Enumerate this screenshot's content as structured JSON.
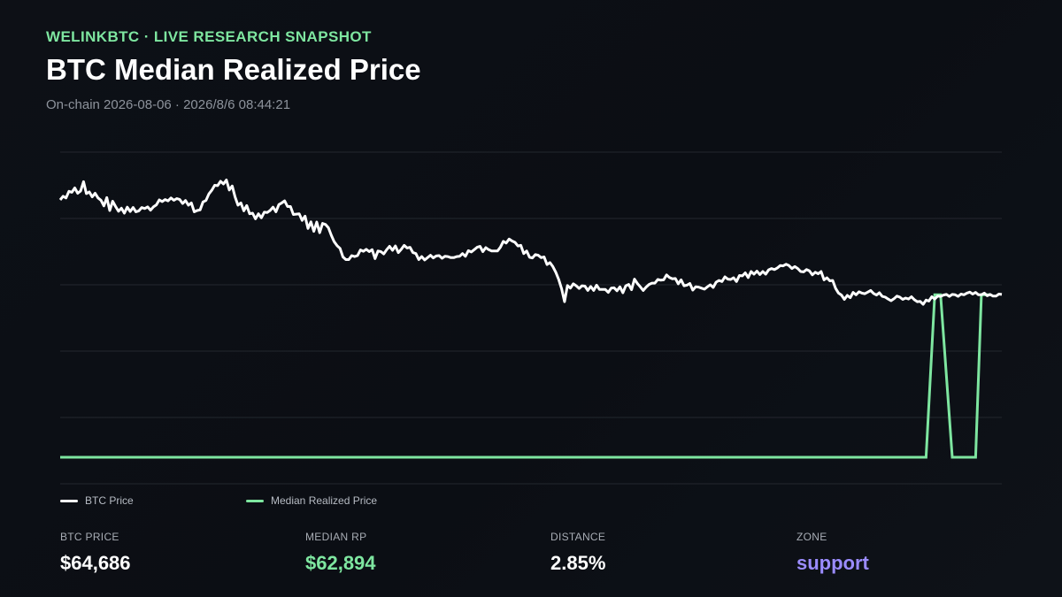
{
  "header": {
    "brand": "WELINKBTC · LIVE RESEARCH SNAPSHOT",
    "title": "BTC Median Realized Price",
    "subtitle": "On-chain 2026-08-06 · 2026/8/6 08:44:21"
  },
  "legend": {
    "btc_price": "BTC Price",
    "median_rp": "Median Realized Price"
  },
  "stats": [
    {
      "label": "BTC PRICE",
      "value": "$64,686",
      "color": "#ffffff"
    },
    {
      "label": "MEDIAN RP",
      "value": "$62,894",
      "color": "#7ee6a0"
    },
    {
      "label": "DISTANCE",
      "value": "2.85%",
      "color": "#ffffff"
    },
    {
      "label": "ZONE",
      "value": "support",
      "color": "#9b8cff"
    }
  ],
  "colors": {
    "btc_price": "#ffffff",
    "median_rp": "#7ee6a0",
    "grid": "#23272e",
    "zone": "#9b8cff"
  },
  "chart_data": {
    "type": "line",
    "grid": true,
    "x_axis_labels": false,
    "y_axis_labels": false,
    "legend_position": "bottom-left",
    "ylim": [
      0,
      100
    ],
    "series": [
      {
        "name": "BTC Price",
        "color": "#ffffff",
        "values": [
          85.6,
          86.7,
          86.2,
          88.2,
          87.9,
          89.2,
          87.6,
          88.3,
          91.1,
          87.5,
          88.0,
          86.5,
          87.6,
          86.2,
          85.5,
          83.8,
          86.3,
          82.4,
          85.2,
          83.6,
          82.2,
          83.1,
          81.6,
          83.4,
          82.1,
          83.3,
          82.0,
          82.3,
          83.3,
          83.0,
          83.5,
          82.5,
          83.5,
          84.1,
          85.6,
          85.1,
          85.7,
          85.3,
          86.2,
          85.5,
          86.0,
          85.7,
          84.5,
          85.4,
          84.0,
          84.7,
          82.0,
          82.4,
          82.6,
          85.0,
          85.4,
          87.4,
          88.5,
          90.0,
          89.9,
          91.2,
          90.4,
          91.6,
          88.6,
          89.8,
          86.5,
          84.0,
          84.7,
          82.3,
          83.9,
          81.4,
          81.6,
          79.9,
          81.4,
          80.2,
          81.9,
          81.8,
          82.4,
          83.4,
          82.0,
          84.2,
          84.7,
          85.3,
          83.6,
          83.6,
          81.2,
          81.3,
          81.4,
          79.4,
          80.7,
          77.0,
          79.0,
          76.1,
          78.9,
          75.7,
          78.5,
          78.2,
          77.2,
          74.9,
          73.0,
          71.8,
          71.0,
          68.4,
          67.6,
          67.6,
          68.8,
          68.5,
          68.8,
          70.5,
          70.1,
          70.7,
          70.0,
          70.6,
          67.9,
          70.2,
          70.0,
          69.3,
          70.6,
          71.6,
          70.4,
          71.7,
          69.7,
          70.7,
          71.9,
          71.1,
          71.3,
          69.7,
          69.4,
          67.6,
          68.5,
          67.5,
          68.2,
          68.9,
          68.1,
          68.7,
          68.8,
          68.0,
          68.6,
          68.5,
          68.2,
          68.2,
          68.5,
          68.6,
          69.4,
          68.6,
          70.3,
          69.9,
          70.6,
          71.3,
          71.6,
          70.0,
          71.2,
          70.6,
          70.2,
          70.2,
          70.2,
          71.3,
          73.1,
          72.6,
          73.8,
          73.2,
          72.8,
          71.7,
          71.9,
          69.4,
          70.2,
          68.3,
          68.1,
          69.1,
          68.9,
          68.2,
          68.4,
          66.1,
          66.7,
          65.5,
          63.8,
          61.6,
          58.8,
          54.9,
          59.8,
          59.0,
          60.3,
          59.7,
          58.9,
          59.7,
          59.6,
          58.3,
          59.5,
          58.3,
          59.9,
          58.6,
          58.6,
          58.6,
          57.7,
          59.0,
          59.1,
          58.2,
          59.4,
          57.6,
          59.7,
          60.1,
          58.5,
          61.7,
          60.4,
          59.4,
          58.3,
          59.3,
          60.1,
          60.5,
          60.5,
          61.6,
          61.4,
          61.5,
          63.0,
          62.2,
          61.8,
          61.9,
          60.3,
          61.5,
          59.7,
          59.9,
          60.4,
          58.4,
          59.4,
          59.3,
          59.0,
          58.7,
          59.4,
          60.0,
          59.2,
          60.8,
          61.3,
          61.0,
          62.4,
          61.7,
          61.6,
          62.1,
          61.0,
          62.8,
          62.7,
          63.6,
          62.2,
          64.0,
          63.2,
          64.1,
          63.1,
          64.0,
          63.2,
          64.5,
          64.9,
          64.6,
          65.1,
          65.8,
          65.7,
          66.2,
          65.8,
          64.9,
          65.5,
          64.9,
          64.0,
          63.9,
          64.6,
          64.2,
          63.0,
          63.8,
          63.3,
          64.0,
          61.5,
          62.1,
          61.2,
          61.3,
          58.9,
          57.5,
          56.9,
          55.6,
          56.8,
          56.1,
          57.7,
          57.0,
          57.9,
          57.5,
          57.3,
          57.8,
          58.3,
          57.4,
          56.9,
          57.6,
          56.5,
          56.3,
          55.7,
          55.2,
          55.8,
          56.6,
          56.3,
          55.6,
          56.0,
          55.7,
          56.4,
          55.5,
          54.9,
          55.0,
          54.1,
          55.4,
          55.1,
          56.4,
          55.7,
          56.6,
          56.5,
          56.9,
          57.1,
          56.5,
          57.1,
          57.0,
          56.5,
          57.2,
          57.0,
          57.5,
          57.8,
          57.2,
          57.7,
          57.0,
          57.0,
          57.5,
          56.7,
          57.1,
          56.6,
          56.6,
          57.2,
          57.1
        ]
      },
      {
        "name": "Median Realized Price",
        "color": "#7ee6a0",
        "values": [
          [
            0,
            8
          ],
          [
            297,
            8
          ],
          [
            300,
            57
          ],
          [
            302,
            57
          ],
          [
            306,
            8
          ],
          [
            314,
            8
          ],
          [
            316,
            57
          ],
          [
            319,
            57
          ]
        ]
      }
    ]
  }
}
